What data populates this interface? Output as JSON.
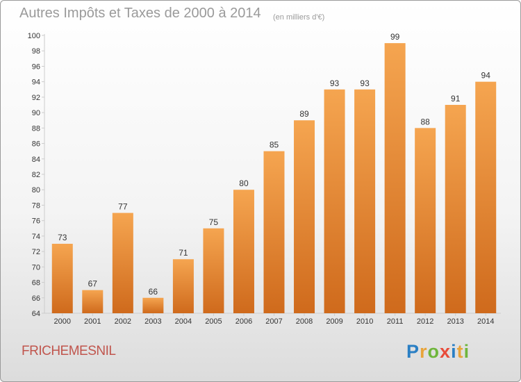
{
  "title": "Autres Impôts et Taxes de 2000 à 2014",
  "subtitle": "(en milliers d'€)",
  "commune": "FRICHEMESNIL",
  "logo": {
    "text": "Proxiti",
    "letters": [
      "P",
      "r",
      "o",
      "x",
      "i",
      "t",
      "i"
    ],
    "colors": [
      "#2a7fc4",
      "#e8a43a",
      "#6fb63c",
      "#e84b3a",
      "#2a7fc4",
      "#e8a43a",
      "#6fb63c"
    ]
  },
  "colors": {
    "bar_top": "#f5a550",
    "bar_bottom": "#cf6a1c",
    "axis": "#cccccc",
    "text": "#333333"
  },
  "chart_data": {
    "type": "bar",
    "categories": [
      "2000",
      "2001",
      "2002",
      "2003",
      "2004",
      "2005",
      "2006",
      "2007",
      "2008",
      "2009",
      "2010",
      "2011",
      "2012",
      "2013",
      "2014"
    ],
    "values": [
      73,
      67,
      77,
      66,
      71,
      75,
      80,
      85,
      89,
      93,
      93,
      99,
      88,
      91,
      94
    ],
    "title": "Autres Impôts et Taxes de 2000 à 2014",
    "subtitle": "(en milliers d'€)",
    "xlabel": "",
    "ylabel": "",
    "ylim": [
      64,
      100
    ],
    "yticks": [
      64,
      66,
      68,
      70,
      72,
      74,
      76,
      78,
      80,
      82,
      84,
      86,
      88,
      90,
      92,
      94,
      96,
      98,
      100
    ],
    "grid": false,
    "data_labels": true
  }
}
